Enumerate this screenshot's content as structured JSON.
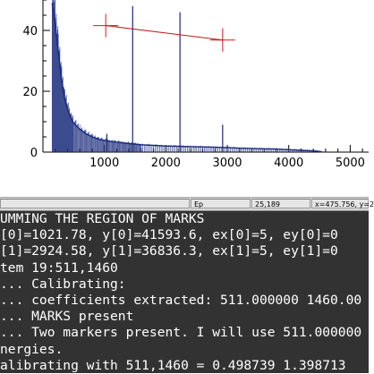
{
  "colors": {
    "plot_background": "#ffffff",
    "histogram": "#1a2a7a",
    "marker": "#d01818",
    "fit_line": "#c02020",
    "terminal_background": "#323232",
    "terminal_text": "#ffffff",
    "statusbar": "#d9d9d9"
  },
  "chart_data": {
    "type": "line",
    "title": "",
    "xlabel": "",
    "ylabel": "",
    "xlim": [
      0,
      5300
    ],
    "ylim": [
      0,
      50
    ],
    "x_ticks": [
      "1000",
      "2000",
      "3000",
      "4000",
      "5000"
    ],
    "y_ticks": [
      "20",
      "40"
    ],
    "grid": false,
    "series": [
      {
        "x": [
          150,
          200,
          250,
          300,
          350,
          400,
          450,
          500,
          600,
          700,
          800,
          900,
          1000,
          1100,
          1200,
          1300,
          1400,
          1500,
          1600,
          1800,
          2000,
          2200,
          2400,
          2600,
          2800,
          3000,
          3200,
          3400,
          3600,
          3800,
          4000,
          4200,
          4400,
          4500,
          4550
        ],
        "y": [
          49,
          42,
          33,
          24,
          18,
          14,
          11.5,
          9.5,
          7.5,
          6,
          5,
          4.3,
          3.8,
          3.5,
          3.3,
          3.0,
          2.8,
          2.6,
          2.4,
          2.2,
          2.0,
          1.9,
          1.8,
          1.7,
          1.6,
          1.5,
          1.3,
          1.2,
          1.1,
          1.0,
          0.8,
          0.6,
          0.4,
          0.2,
          0
        ]
      }
    ],
    "peaks": [
      {
        "x": 1040,
        "y": 6
      },
      {
        "x": 1460,
        "y": 48
      },
      {
        "x": 2230,
        "y": 46
      },
      {
        "x": 2924,
        "y": 9
      }
    ],
    "markers": [
      {
        "x": 1021.78,
        "y": 41.59
      },
      {
        "x": 2924.58,
        "y": 36.84
      }
    ]
  },
  "statusbar": {
    "mode": "Ep",
    "pixel": "25,189",
    "coords": "x=475.756, y=2"
  },
  "terminal": {
    "lines": [
      "UMMING THE REGION OF MARKS",
      "[0]=1021.78, y[0]=41593.6, ex[0]=5, ey[0]=0",
      "[1]=2924.58, y[1]=36836.3, ex[1]=5, ey[1]=0",
      "tem 19:511,1460",
      "... Calibrating:",
      "... coefficients extracted: 511.000000 1460.00",
      "... MARKS present",
      "... Two markers present. I will use 511.000000",
      "nergies.",
      "alibrating with 511,1460 = 0.498739 1.398713"
    ]
  }
}
